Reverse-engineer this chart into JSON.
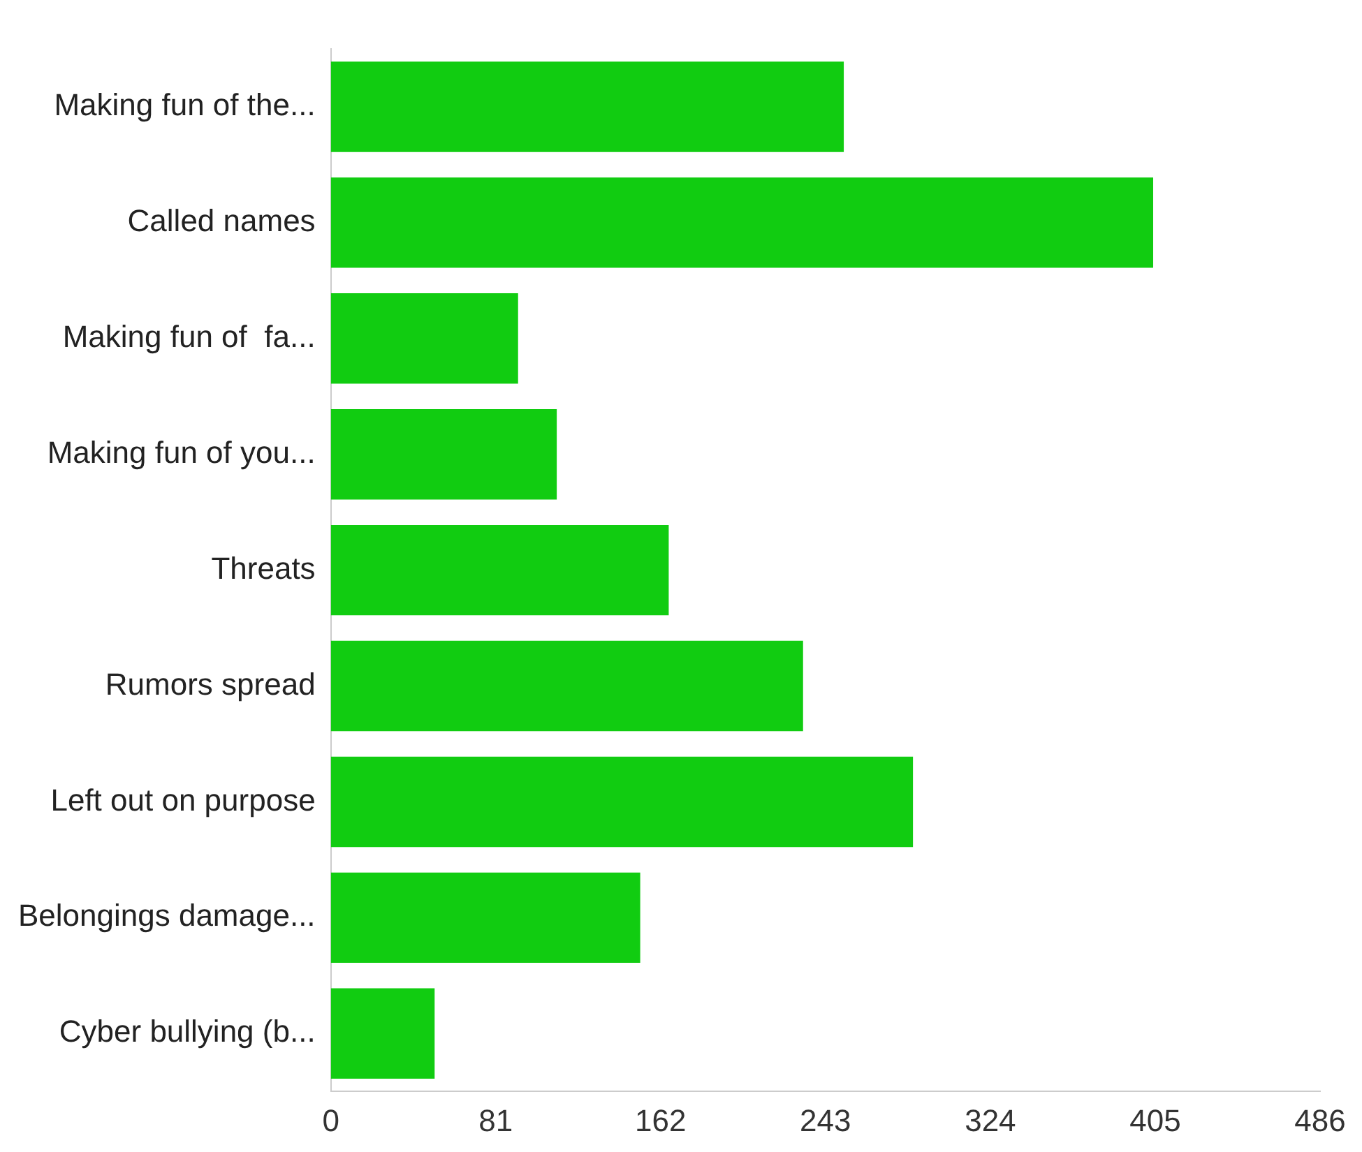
{
  "chart_data": {
    "type": "bar",
    "orientation": "horizontal",
    "categories": [
      "Making fun of the...",
      "Called names",
      "Making fun of  fa...",
      "Making fun of you...",
      "Threats",
      "Rumors spread",
      "Left out on purpose",
      "Belongings damage...",
      "Cyber bullying (b..."
    ],
    "values": [
      252,
      404,
      92,
      111,
      166,
      232,
      286,
      152,
      51
    ],
    "color": "#11cc11",
    "xlim": [
      0,
      486
    ],
    "xticks": [
      0,
      81,
      162,
      243,
      324,
      405,
      486
    ],
    "grid": false,
    "legend": false
  }
}
